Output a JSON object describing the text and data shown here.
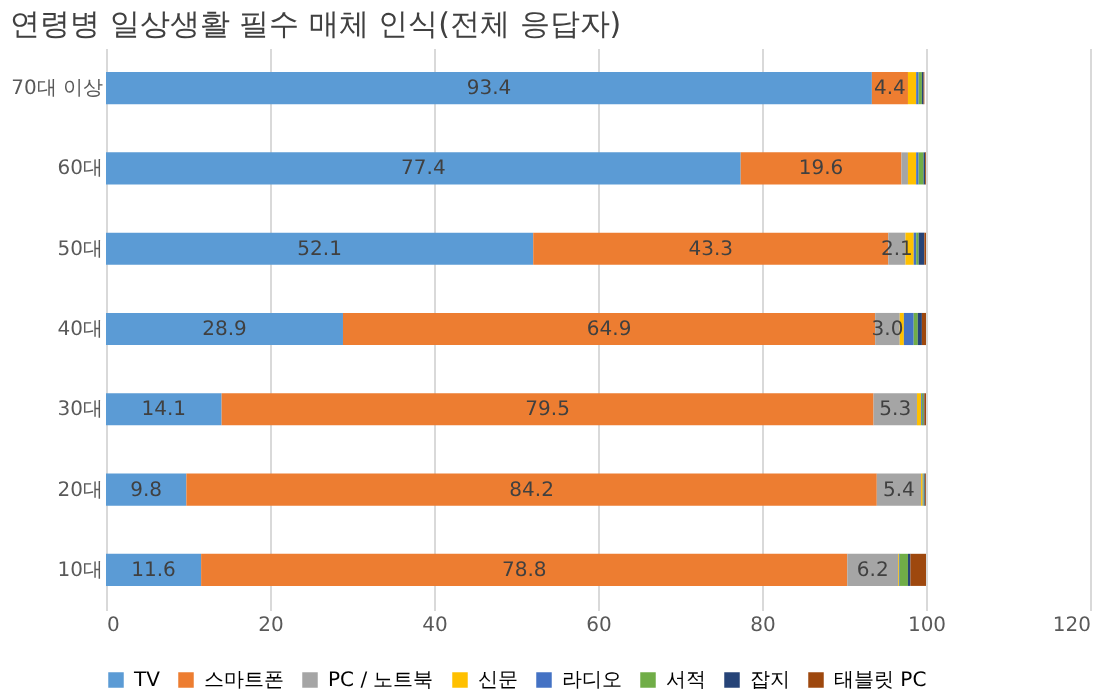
{
  "chart_data": {
    "type": "bar",
    "orientation": "horizontal",
    "stacked": true,
    "title": "연령병 일상생활 필수 매체 인식(전체 응답자)",
    "categories": [
      "70대 이상",
      "60대",
      "50대",
      "40대",
      "30대",
      "20대",
      "10대"
    ],
    "series": [
      {
        "name": "TV",
        "color": "#5b9bd5",
        "values": [
          93.4,
          77.4,
          52.1,
          28.9,
          14.1,
          9.8,
          11.6
        ],
        "value_labels": [
          "93.4",
          "77.4",
          "52.1",
          "28.9",
          "14.1",
          "9.8",
          "11.6"
        ]
      },
      {
        "name": "스마트폰",
        "color": "#ed7d31",
        "values": [
          4.4,
          19.6,
          43.3,
          64.9,
          79.5,
          84.2,
          78.8
        ],
        "value_labels": [
          "4.4",
          "19.6",
          "43.3",
          "64.9",
          "79.5",
          "84.2",
          "78.8"
        ]
      },
      {
        "name": "PC / 노트북",
        "color": "#a5a5a5",
        "values": [
          null,
          0.8,
          2.1,
          3.0,
          5.3,
          5.4,
          6.2
        ],
        "value_labels": [
          null,
          null,
          "2.1",
          "3.0",
          "5.3",
          "5.4",
          "6.2"
        ]
      },
      {
        "name": "신문",
        "color": "#ffc000",
        "values": [
          1.0,
          1.0,
          1.0,
          0.5,
          0.5,
          0.2,
          0.1
        ],
        "value_labels": [
          null,
          null,
          null,
          null,
          null,
          null,
          null
        ]
      },
      {
        "name": "라디오",
        "color": "#4472c4",
        "values": [
          0.3,
          0.3,
          0.3,
          1.2,
          0.1,
          0.1,
          0.1
        ],
        "value_labels": [
          null,
          null,
          null,
          null,
          null,
          null,
          null
        ]
      },
      {
        "name": "서적",
        "color": "#70ad47",
        "values": [
          0.4,
          0.6,
          0.3,
          0.5,
          0.2,
          0.1,
          1.0
        ],
        "value_labels": [
          null,
          null,
          null,
          null,
          null,
          null,
          null
        ]
      },
      {
        "name": "잡지",
        "color": "#264478",
        "values": [
          0.2,
          0.2,
          0.7,
          0.5,
          0.1,
          0.1,
          0.3
        ],
        "value_labels": [
          null,
          null,
          null,
          null,
          null,
          null,
          null
        ]
      },
      {
        "name": "태블릿 PC",
        "color": "#9e480e",
        "values": [
          0.1,
          0.1,
          0.2,
          0.5,
          0.2,
          0.1,
          1.9
        ],
        "value_labels": [
          null,
          null,
          null,
          null,
          null,
          null,
          null
        ]
      }
    ],
    "xlim": [
      0,
      120
    ],
    "xticks": [
      0,
      20,
      40,
      60,
      80,
      100,
      120
    ],
    "grid": "x",
    "legend": "bottom"
  }
}
